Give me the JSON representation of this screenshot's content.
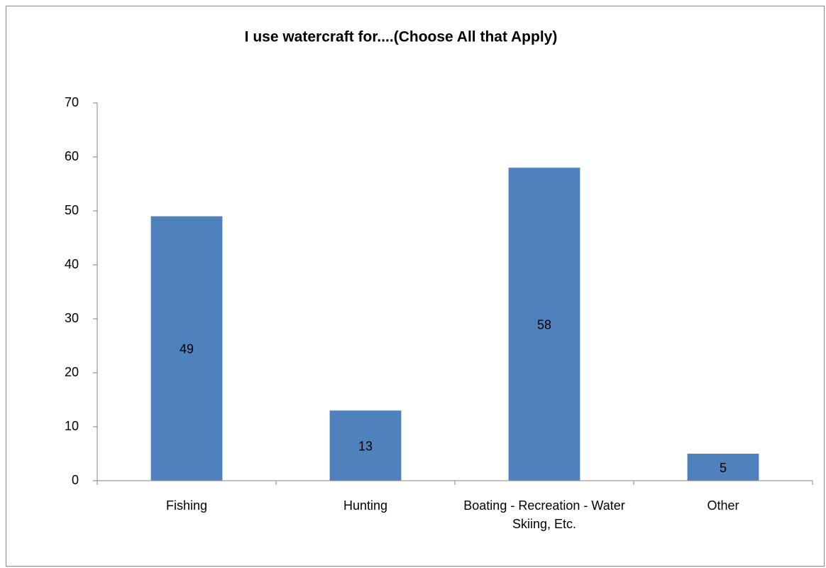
{
  "chart_data": {
    "type": "bar",
    "title": "I use watercraft for....(Choose All that Apply)",
    "categories": [
      "Fishing",
      "Hunting",
      "Boating - Recreation - Water Skiing, Etc.",
      "Other"
    ],
    "values": [
      49,
      13,
      58,
      5
    ],
    "color": "#4f81bd",
    "ylim": [
      0,
      70
    ],
    "yticks": [
      0,
      10,
      20,
      30,
      40,
      50,
      60,
      70
    ],
    "grid": false
  }
}
